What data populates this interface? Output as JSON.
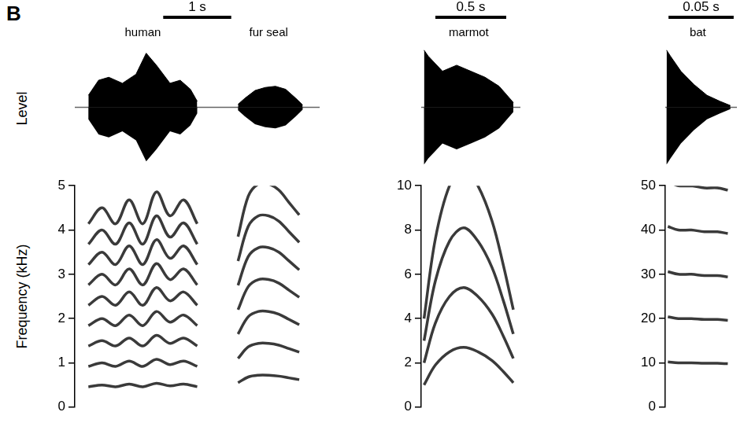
{
  "panel_label": "B",
  "chart_data": [
    {
      "type": "line",
      "ylabel": "Frequency (kHz)",
      "level_label": "Level",
      "scale_bar": {
        "value": 1,
        "label": "1 s"
      },
      "xlim": [
        0,
        3.6
      ],
      "ylim": [
        0,
        5
      ],
      "yticks": [
        0,
        1,
        2,
        3,
        4,
        5
      ],
      "level_lim": [
        -1,
        1
      ],
      "tick_labels": "y",
      "grid": false,
      "color": "#3a3a3a",
      "calls": [
        {
          "label": "human",
          "level_x": [
            0.2,
            0.35,
            0.5,
            0.7,
            0.9,
            1.05,
            1.2,
            1.4,
            1.55,
            1.7,
            1.8
          ],
          "level": [
            0.2,
            0.45,
            0.5,
            0.4,
            0.55,
            0.9,
            0.7,
            0.4,
            0.45,
            0.3,
            0.1
          ],
          "x": [
            0.2,
            0.4,
            0.6,
            0.8,
            1.0,
            1.2,
            1.4,
            1.6,
            1.8
          ],
          "harmonics": [
            [
              0.46,
              0.5,
              0.46,
              0.52,
              0.46,
              0.54,
              0.48,
              0.52,
              0.46
            ],
            [
              0.92,
              1.0,
              0.92,
              1.04,
              0.92,
              1.08,
              0.96,
              1.04,
              0.92
            ],
            [
              1.38,
              1.5,
              1.38,
              1.56,
              1.38,
              1.62,
              1.44,
              1.56,
              1.38
            ],
            [
              1.84,
              2.0,
              1.84,
              2.08,
              1.84,
              2.16,
              1.92,
              2.08,
              1.84
            ],
            [
              2.3,
              2.5,
              2.3,
              2.6,
              2.3,
              2.7,
              2.4,
              2.6,
              2.3
            ],
            [
              2.76,
              3.0,
              2.76,
              3.12,
              2.76,
              3.24,
              2.88,
              3.12,
              2.76
            ],
            [
              3.22,
              3.5,
              3.22,
              3.64,
              3.22,
              3.78,
              3.36,
              3.64,
              3.22
            ],
            [
              3.68,
              4.0,
              3.68,
              4.16,
              3.68,
              4.32,
              3.84,
              4.16,
              3.68
            ],
            [
              4.14,
              4.5,
              4.14,
              4.68,
              4.14,
              4.86,
              4.32,
              4.68,
              4.14
            ]
          ]
        },
        {
          "label": "fur seal",
          "level_x": [
            2.4,
            2.5,
            2.65,
            2.8,
            2.95,
            3.1,
            3.25,
            3.35
          ],
          "level": [
            0.05,
            0.15,
            0.28,
            0.33,
            0.35,
            0.3,
            0.15,
            0.04
          ],
          "x": [
            2.4,
            2.55,
            2.7,
            2.85,
            3.0,
            3.15,
            3.3
          ],
          "harmonics": [
            [
              0.55,
              0.68,
              0.72,
              0.72,
              0.7,
              0.66,
              0.62
            ],
            [
              1.1,
              1.36,
              1.44,
              1.44,
              1.4,
              1.32,
              1.24
            ],
            [
              1.65,
              2.04,
              2.16,
              2.16,
              2.1,
              1.98,
              1.86
            ],
            [
              2.2,
              2.72,
              2.88,
              2.88,
              2.8,
              2.64,
              2.48
            ],
            [
              2.75,
              3.4,
              3.6,
              3.6,
              3.5,
              3.3,
              3.1
            ],
            [
              3.3,
              4.08,
              4.32,
              4.32,
              4.2,
              3.96,
              3.72
            ],
            [
              3.85,
              4.76,
              5.04,
              5.04,
              4.9,
              4.62,
              4.34
            ]
          ]
        }
      ]
    },
    {
      "type": "line",
      "scale_bar": {
        "value": 0.5,
        "label": "0.5 s"
      },
      "xlim": [
        0,
        0.7
      ],
      "ylim": [
        0,
        10
      ],
      "yticks": [
        0,
        2,
        4,
        6,
        8,
        10
      ],
      "level_lim": [
        -1,
        1
      ],
      "tick_labels": "y",
      "grid": false,
      "color": "#3a3a3a",
      "calls": [
        {
          "label": "marmot",
          "level_x": [
            0.02,
            0.05,
            0.15,
            0.25,
            0.35,
            0.45,
            0.55,
            0.65
          ],
          "level": [
            0.95,
            0.85,
            0.6,
            0.7,
            0.6,
            0.5,
            0.35,
            0.08
          ],
          "x": [
            0.02,
            0.1,
            0.2,
            0.3,
            0.4,
            0.5,
            0.58,
            0.65
          ],
          "harmonics": [
            [
              1.0,
              1.9,
              2.5,
              2.7,
              2.5,
              2.1,
              1.6,
              1.1
            ],
            [
              2.0,
              3.8,
              5.0,
              5.4,
              5.0,
              4.2,
              3.2,
              2.2
            ],
            [
              3.0,
              5.7,
              7.5,
              8.1,
              7.5,
              6.3,
              4.8,
              3.3
            ],
            [
              4.0,
              7.6,
              10.0,
              10.8,
              10.0,
              8.4,
              6.4,
              4.4
            ]
          ]
        }
      ]
    },
    {
      "type": "line",
      "scale_bar": {
        "value": 0.05,
        "label": "0.05 s"
      },
      "xlim": [
        0,
        0.055
      ],
      "ylim": [
        0,
        50
      ],
      "yticks": [
        0,
        10,
        20,
        30,
        40,
        50
      ],
      "level_lim": [
        -1,
        1
      ],
      "tick_labels": "y",
      "grid": false,
      "color": "#3a3a3a",
      "calls": [
        {
          "label": "bat",
          "level_x": [
            0.001,
            0.004,
            0.012,
            0.022,
            0.032,
            0.042,
            0.05
          ],
          "level": [
            0.95,
            0.85,
            0.6,
            0.38,
            0.2,
            0.1,
            0.03
          ],
          "x": [
            0.002,
            0.01,
            0.02,
            0.03,
            0.04,
            0.048
          ],
          "harmonics": [
            [
              10.2,
              10.0,
              10.0,
              9.9,
              9.9,
              9.8
            ],
            [
              20.4,
              20.0,
              20.0,
              19.8,
              19.8,
              19.6
            ],
            [
              30.6,
              30.0,
              30.0,
              29.7,
              29.7,
              29.4
            ],
            [
              40.8,
              40.0,
              40.0,
              39.6,
              39.6,
              39.2
            ],
            [
              51.0,
              50.0,
              50.0,
              49.5,
              49.5,
              49.0
            ]
          ]
        }
      ]
    }
  ]
}
